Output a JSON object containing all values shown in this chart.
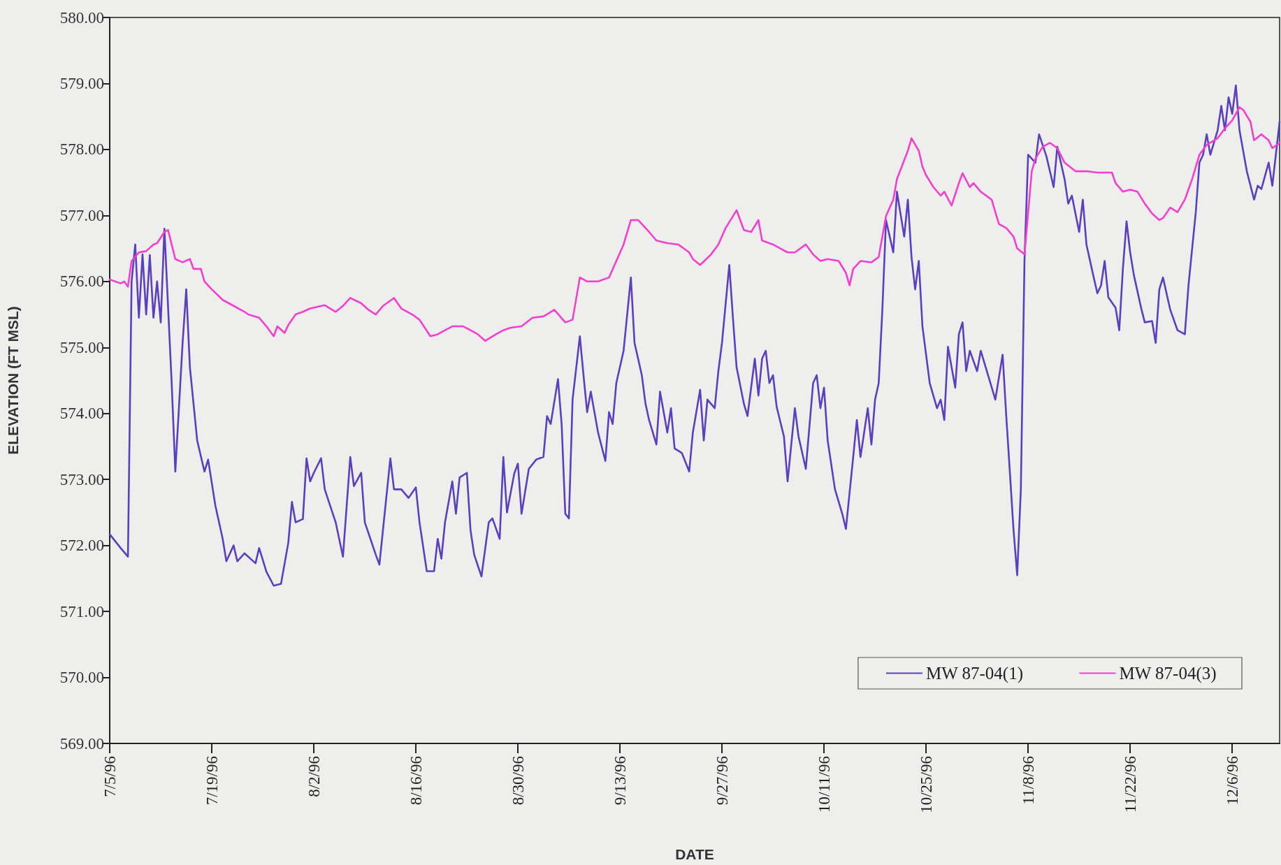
{
  "chart_data": {
    "type": "line",
    "xlabel": "DATE",
    "ylabel": "ELEVATION (FT MSL)",
    "xlim": [
      "1996-07-05",
      "1996-12-12T12:00"
    ],
    "xticks": [
      {
        "value": "1996-07-05",
        "label": "7/5/96"
      },
      {
        "value": "1996-07-19",
        "label": "7/19/96"
      },
      {
        "value": "1996-08-02",
        "label": "8/2/96"
      },
      {
        "value": "1996-08-16",
        "label": "8/16/96"
      },
      {
        "value": "1996-08-30",
        "label": "8/30/96"
      },
      {
        "value": "1996-09-13",
        "label": "9/13/96"
      },
      {
        "value": "1996-09-27",
        "label": "9/27/96"
      },
      {
        "value": "1996-10-11",
        "label": "10/11/96"
      },
      {
        "value": "1996-10-25",
        "label": "10/25/96"
      },
      {
        "value": "1996-11-08",
        "label": "11/8/96"
      },
      {
        "value": "1996-11-22",
        "label": "11/22/96"
      },
      {
        "value": "1996-12-06",
        "label": "12/6/96"
      }
    ],
    "ylim": [
      569,
      580
    ],
    "yticks": [
      {
        "value": 569,
        "label": "569.00"
      },
      {
        "value": 570,
        "label": "570.00"
      },
      {
        "value": 571,
        "label": "571.00"
      },
      {
        "value": 572,
        "label": "572.00"
      },
      {
        "value": 573,
        "label": "573.00"
      },
      {
        "value": 574,
        "label": "574.00"
      },
      {
        "value": 575,
        "label": "575.00"
      },
      {
        "value": 576,
        "label": "576.00"
      },
      {
        "value": 577,
        "label": "577.00"
      },
      {
        "value": 578,
        "label": "578.00"
      },
      {
        "value": 579,
        "label": "579.00"
      },
      {
        "value": 580,
        "label": "580.00"
      }
    ],
    "legend": "bottom right",
    "marker": "none",
    "line_style": "solid",
    "series": [
      {
        "name": "MW 87-04(1)",
        "color": "#5a3fbf",
        "x": [
          "1996-07-05",
          "1996-07-06T12:00",
          "1996-07-07T12:00",
          "1996-07-08",
          "1996-07-08T12:00",
          "1996-07-09",
          "1996-07-09T12:00",
          "1996-07-10",
          "1996-07-10T12:00",
          "1996-07-11",
          "1996-07-11T12:00",
          "1996-07-12",
          "1996-07-12T12:00",
          "1996-07-13T12:00",
          "1996-07-14",
          "1996-07-15",
          "1996-07-15T12:00",
          "1996-07-16",
          "1996-07-17",
          "1996-07-18",
          "1996-07-18T12:00",
          "1996-07-19T12:00",
          "1996-07-20T12:00",
          "1996-07-21",
          "1996-07-22",
          "1996-07-22T12:00",
          "1996-07-23T12:00",
          "1996-07-25",
          "1996-07-25T12:00",
          "1996-07-26T12:00",
          "1996-07-27T12:00",
          "1996-07-28T12:00",
          "1996-07-29T12:00",
          "1996-07-30",
          "1996-07-30T12:00",
          "1996-07-31T12:00",
          "1996-08-01",
          "1996-08-01T12:00",
          "1996-08-02",
          "1996-08-03",
          "1996-08-03T12:00",
          "1996-08-05",
          "1996-08-06",
          "1996-08-07",
          "1996-08-07T12:00",
          "1996-08-08T12:00",
          "1996-08-09",
          "1996-08-10T12:00",
          "1996-08-11",
          "1996-08-12T12:00",
          "1996-08-13",
          "1996-08-14",
          "1996-08-15",
          "1996-08-16",
          "1996-08-16T12:00",
          "1996-08-17T12:00",
          "1996-08-18T12:00",
          "1996-08-19",
          "1996-08-19T12:00",
          "1996-08-20",
          "1996-08-21",
          "1996-08-21T12:00",
          "1996-08-22",
          "1996-08-23",
          "1996-08-23T12:00",
          "1996-08-24",
          "1996-08-25",
          "1996-08-26",
          "1996-08-26T12:00",
          "1996-08-27T12:00",
          "1996-08-28",
          "1996-08-28T12:00",
          "1996-08-29T12:00",
          "1996-08-30",
          "1996-08-30T12:00",
          "1996-08-31T12:00",
          "1996-09-01T12:00",
          "1996-09-02T12:00",
          "1996-09-03",
          "1996-09-03T12:00",
          "1996-09-04T12:00",
          "1996-09-05",
          "1996-09-05T12:00",
          "1996-09-06",
          "1996-09-06T12:00",
          "1996-09-07T12:00",
          "1996-09-08",
          "1996-09-08T12:00",
          "1996-09-09",
          "1996-09-10",
          "1996-09-11",
          "1996-09-11T12:00",
          "1996-09-12",
          "1996-09-12T12:00",
          "1996-09-13T12:00",
          "1996-09-14T12:00",
          "1996-09-15",
          "1996-09-16",
          "1996-09-16T12:00",
          "1996-09-17",
          "1996-09-18",
          "1996-09-18T12:00",
          "1996-09-19T12:00",
          "1996-09-20",
          "1996-09-20T12:00",
          "1996-09-21T12:00",
          "1996-09-22T12:00",
          "1996-09-23",
          "1996-09-24",
          "1996-09-24T12:00",
          "1996-09-25",
          "1996-09-26",
          "1996-09-26T12:00",
          "1996-09-27",
          "1996-09-28",
          "1996-09-28T12:00",
          "1996-09-29",
          "1996-09-30",
          "1996-09-30T12:00",
          "1996-10-01T12:00",
          "1996-10-02",
          "1996-10-02T12:00",
          "1996-10-03",
          "1996-10-03T12:00",
          "1996-10-04",
          "1996-10-04T12:00",
          "1996-10-05T12:00",
          "1996-10-06",
          "1996-10-07",
          "1996-10-07T12:00",
          "1996-10-08T12:00",
          "1996-10-09T12:00",
          "1996-10-10",
          "1996-10-10T12:00",
          "1996-10-11",
          "1996-10-11T12:00",
          "1996-10-12T12:00",
          "1996-10-13T12:00",
          "1996-10-14",
          "1996-10-15",
          "1996-10-15T12:00",
          "1996-10-16",
          "1996-10-16T12:00",
          "1996-10-17",
          "1996-10-17T12:00",
          "1996-10-18",
          "1996-10-18T12:00",
          "1996-10-19",
          "1996-10-19T12:00",
          "1996-10-20T12:00",
          "1996-10-21",
          "1996-10-22",
          "1996-10-22T12:00",
          "1996-10-23",
          "1996-10-23T12:00",
          "1996-10-24",
          "1996-10-24T12:00",
          "1996-10-25T12:00",
          "1996-10-26T12:00",
          "1996-10-27",
          "1996-10-27T12:00",
          "1996-10-28",
          "1996-10-29",
          "1996-10-29T12:00",
          "1996-10-30",
          "1996-10-30T12:00",
          "1996-10-31",
          "1996-11-01",
          "1996-11-01T12:00",
          "1996-11-02T12:00",
          "1996-11-03T12:00",
          "1996-11-04T12:00",
          "1996-11-05",
          "1996-11-05T12:00",
          "1996-11-06",
          "1996-11-06T12:00",
          "1996-11-07",
          "1996-11-07T12:00",
          "1996-11-08",
          "1996-11-09",
          "1996-11-09T12:00",
          "1996-11-10T12:00",
          "1996-11-11T12:00",
          "1996-11-12",
          "1996-11-13",
          "1996-11-13T12:00",
          "1996-11-14",
          "1996-11-15",
          "1996-11-15T12:00",
          "1996-11-16",
          "1996-11-17",
          "1996-11-17T12:00",
          "1996-11-18",
          "1996-11-18T12:00",
          "1996-11-19",
          "1996-11-20",
          "1996-11-20T12:00",
          "1996-11-21",
          "1996-11-21T12:00",
          "1996-11-22",
          "1996-11-22T12:00",
          "1996-11-23T12:00",
          "1996-11-24",
          "1996-11-25",
          "1996-11-25T12:00",
          "1996-11-26",
          "1996-11-26T12:00",
          "1996-11-27T12:00",
          "1996-11-28T12:00",
          "1996-11-29T12:00",
          "1996-11-30",
          "1996-12-01",
          "1996-12-01T12:00",
          "1996-12-02",
          "1996-12-02T12:00",
          "1996-12-03",
          "1996-12-04",
          "1996-12-04T12:00",
          "1996-12-05",
          "1996-12-05T12:00",
          "1996-12-06",
          "1996-12-06T12:00",
          "1996-12-07",
          "1996-12-08",
          "1996-12-09",
          "1996-12-09T12:00",
          "1996-12-10",
          "1996-12-10T12:00",
          "1996-12-11",
          "1996-12-11T12:00",
          "1996-12-12T12:00"
        ],
        "values": [
          572.17,
          571.96,
          571.83,
          576.0,
          576.56,
          575.45,
          576.41,
          575.5,
          576.4,
          575.45,
          576.0,
          575.38,
          576.8,
          574.46,
          573.12,
          575.07,
          575.88,
          574.7,
          573.59,
          573.12,
          573.3,
          572.6,
          572.1,
          571.76,
          572.0,
          571.76,
          571.88,
          571.73,
          571.96,
          571.6,
          571.39,
          571.42,
          572.04,
          572.66,
          572.35,
          572.4,
          573.32,
          572.97,
          573.1,
          573.32,
          572.85,
          572.35,
          571.83,
          573.34,
          572.9,
          573.1,
          572.35,
          571.86,
          571.71,
          573.32,
          572.85,
          572.85,
          572.72,
          572.88,
          572.35,
          571.61,
          571.61,
          572.1,
          571.8,
          572.35,
          572.97,
          572.48,
          573.03,
          573.1,
          572.23,
          571.86,
          571.53,
          572.35,
          572.41,
          572.1,
          573.34,
          572.5,
          573.09,
          573.24,
          572.48,
          573.16,
          573.3,
          573.34,
          573.96,
          573.84,
          574.52,
          573.84,
          572.48,
          572.41,
          574.21,
          575.17,
          574.58,
          574.02,
          574.33,
          573.71,
          573.28,
          574.02,
          573.84,
          574.46,
          574.95,
          576.06,
          575.07,
          574.58,
          574.15,
          573.9,
          573.53,
          574.33,
          573.71,
          574.08,
          573.47,
          573.4,
          573.12,
          573.71,
          574.36,
          573.59,
          574.21,
          574.08,
          574.64,
          575.07,
          576.25,
          575.45,
          574.7,
          574.15,
          573.96,
          574.83,
          574.27,
          574.83,
          574.95,
          574.46,
          574.58,
          574.1,
          573.65,
          572.97,
          574.08,
          573.65,
          573.16,
          574.46,
          574.58,
          574.08,
          574.39,
          573.59,
          572.85,
          572.48,
          572.25,
          573.34,
          573.9,
          573.34,
          573.71,
          574.08,
          573.53,
          574.21,
          574.46,
          575.57,
          576.93,
          576.44,
          577.36,
          576.68,
          577.24,
          576.37,
          575.88,
          576.31,
          575.32,
          574.46,
          574.08,
          574.21,
          573.9,
          575.01,
          574.39,
          575.2,
          575.38,
          574.64,
          574.95,
          574.64,
          574.95,
          574.58,
          574.21,
          574.89,
          573.96,
          573.1,
          572.23,
          571.55,
          572.85,
          576.31,
          577.92,
          577.8,
          578.23,
          577.9,
          577.43,
          578.04,
          577.55,
          577.18,
          577.3,
          576.75,
          577.24,
          576.56,
          576.06,
          575.82,
          575.94,
          576.31,
          575.76,
          575.6,
          575.26,
          576.19,
          576.91,
          576.44,
          576.1,
          575.6,
          575.38,
          575.4,
          575.07,
          575.88,
          576.06,
          575.57,
          575.26,
          575.2,
          575.94,
          577.05,
          577.8,
          577.92,
          578.23,
          577.92,
          578.29,
          578.66,
          578.29,
          578.79,
          578.54,
          578.97,
          578.29,
          577.67,
          577.24,
          577.45,
          577.4,
          577.6,
          577.8,
          577.45,
          578.42
        ]
      },
      {
        "name": "MW 87-04(3)",
        "color": "#f23fd0",
        "x": [
          "1996-07-05",
          "1996-07-06T12:00",
          "1996-07-07",
          "1996-07-07T12:00",
          "1996-07-08",
          "1996-07-09",
          "1996-07-10",
          "1996-07-11",
          "1996-07-11T12:00",
          "1996-07-12T12:00",
          "1996-07-13",
          "1996-07-13T12:00",
          "1996-07-14",
          "1996-07-15",
          "1996-07-16",
          "1996-07-16T12:00",
          "1996-07-17T12:00",
          "1996-07-18",
          "1996-07-19",
          "1996-07-20T12:00",
          "1996-07-22",
          "1996-07-23T12:00",
          "1996-07-24",
          "1996-07-25T12:00",
          "1996-07-26T12:00",
          "1996-07-27T12:00",
          "1996-07-28",
          "1996-07-29",
          "1996-07-29T12:00",
          "1996-07-30T12:00",
          "1996-07-31T12:00",
          "1996-08-01T12:00",
          "1996-08-03T12:00",
          "1996-08-05",
          "1996-08-06",
          "1996-08-07",
          "1996-08-08T12:00",
          "1996-08-09T12:00",
          "1996-08-10T12:00",
          "1996-08-11T12:00",
          "1996-08-13",
          "1996-08-14",
          "1996-08-15T12:00",
          "1996-08-16T12:00",
          "1996-08-18",
          "1996-08-19",
          "1996-08-20",
          "1996-08-21",
          "1996-08-22T12:00",
          "1996-08-23T12:00",
          "1996-08-24T12:00",
          "1996-08-25T12:00",
          "1996-08-27",
          "1996-08-28",
          "1996-08-29",
          "1996-08-30T12:00",
          "1996-09-01",
          "1996-09-02T12:00",
          "1996-09-04",
          "1996-09-05T12:00",
          "1996-09-06T12:00",
          "1996-09-07T12:00",
          "1996-09-08T12:00",
          "1996-09-10",
          "1996-09-11T12:00",
          "1996-09-12T12:00",
          "1996-09-13T12:00",
          "1996-09-14T12:00",
          "1996-09-15T12:00",
          "1996-09-17",
          "1996-09-18",
          "1996-09-19T12:00",
          "1996-09-21",
          "1996-09-22T12:00",
          "1996-09-23",
          "1996-09-24",
          "1996-09-25T12:00",
          "1996-09-26T12:00",
          "1996-09-27T12:00",
          "1996-09-29",
          "1996-09-30",
          "1996-10-01",
          "1996-10-02",
          "1996-10-02T12:00",
          "1996-10-04",
          "1996-10-05",
          "1996-10-06",
          "1996-10-07",
          "1996-10-08T12:00",
          "1996-10-09T12:00",
          "1996-10-10T12:00",
          "1996-10-11T12:00",
          "1996-10-13",
          "1996-10-14",
          "1996-10-14T12:00",
          "1996-10-15",
          "1996-10-16",
          "1996-10-17T12:00",
          "1996-10-18T12:00",
          "1996-10-19T12:00",
          "1996-10-20T12:00",
          "1996-10-21",
          "1996-10-22T12:00",
          "1996-10-23",
          "1996-10-24",
          "1996-10-24T12:00",
          "1996-10-25",
          "1996-10-26",
          "1996-10-27",
          "1996-10-27T12:00",
          "1996-10-28T12:00",
          "1996-10-29T12:00",
          "1996-10-30",
          "1996-10-31",
          "1996-10-31T12:00",
          "1996-11-01T12:00",
          "1996-11-03",
          "1996-11-03T12:00",
          "1996-11-04",
          "1996-11-05",
          "1996-11-06",
          "1996-11-06T12:00",
          "1996-11-07T12:00",
          "1996-11-08T12:00",
          "1996-11-09",
          "1996-11-10",
          "1996-11-11",
          "1996-11-12",
          "1996-11-13",
          "1996-11-14T12:00",
          "1996-11-16",
          "1996-11-17T12:00",
          "1996-11-19T12:00",
          "1996-11-20",
          "1996-11-21",
          "1996-11-22",
          "1996-11-23",
          "1996-11-24",
          "1996-11-25",
          "1996-11-26",
          "1996-11-26T12:00",
          "1996-11-27T12:00",
          "1996-11-28T12:00",
          "1996-11-29T12:00",
          "1996-11-30T12:00",
          "1996-12-01T12:00",
          "1996-12-02T12:00",
          "1996-12-04",
          "1996-12-05",
          "1996-12-06",
          "1996-12-07",
          "1996-12-07T12:00",
          "1996-12-08T12:00",
          "1996-12-09",
          "1996-12-10",
          "1996-12-11",
          "1996-12-11T12:00",
          "1996-12-12T12:00"
        ],
        "values": [
          576.03,
          575.97,
          576.0,
          575.92,
          576.31,
          576.44,
          576.46,
          576.56,
          576.58,
          576.75,
          576.78,
          576.56,
          576.34,
          576.29,
          576.34,
          576.19,
          576.19,
          576.0,
          575.88,
          575.72,
          575.63,
          575.54,
          575.5,
          575.45,
          575.32,
          575.17,
          575.32,
          575.22,
          575.34,
          575.5,
          575.54,
          575.59,
          575.64,
          575.54,
          575.63,
          575.75,
          575.67,
          575.57,
          575.5,
          575.63,
          575.75,
          575.59,
          575.5,
          575.42,
          575.17,
          575.2,
          575.26,
          575.32,
          575.32,
          575.26,
          575.2,
          575.1,
          575.2,
          575.26,
          575.3,
          575.32,
          575.45,
          575.47,
          575.57,
          575.38,
          575.42,
          576.06,
          576.0,
          576.0,
          576.06,
          576.31,
          576.56,
          576.93,
          576.93,
          576.75,
          576.62,
          576.58,
          576.56,
          576.44,
          576.34,
          576.25,
          576.41,
          576.56,
          576.81,
          577.08,
          576.78,
          576.75,
          576.93,
          576.62,
          576.56,
          576.5,
          576.44,
          576.44,
          576.56,
          576.41,
          576.31,
          576.34,
          576.31,
          576.13,
          575.94,
          576.19,
          576.31,
          576.29,
          576.37,
          576.99,
          577.24,
          577.55,
          577.98,
          578.17,
          577.98,
          577.74,
          577.61,
          577.43,
          577.3,
          577.36,
          577.15,
          577.49,
          577.64,
          577.43,
          577.49,
          577.36,
          577.24,
          577.05,
          576.87,
          576.81,
          576.68,
          576.5,
          576.41,
          577.67,
          577.86,
          578.04,
          578.1,
          578.02,
          577.8,
          577.67,
          577.67,
          577.65,
          577.65,
          577.49,
          577.36,
          577.39,
          577.36,
          577.18,
          577.03,
          576.93,
          576.96,
          577.12,
          577.05,
          577.24,
          577.55,
          577.92,
          578.07,
          578.17,
          578.32,
          578.44,
          578.64,
          578.6,
          578.42,
          578.14,
          578.23,
          578.14,
          578.02,
          578.1
        ]
      }
    ]
  }
}
